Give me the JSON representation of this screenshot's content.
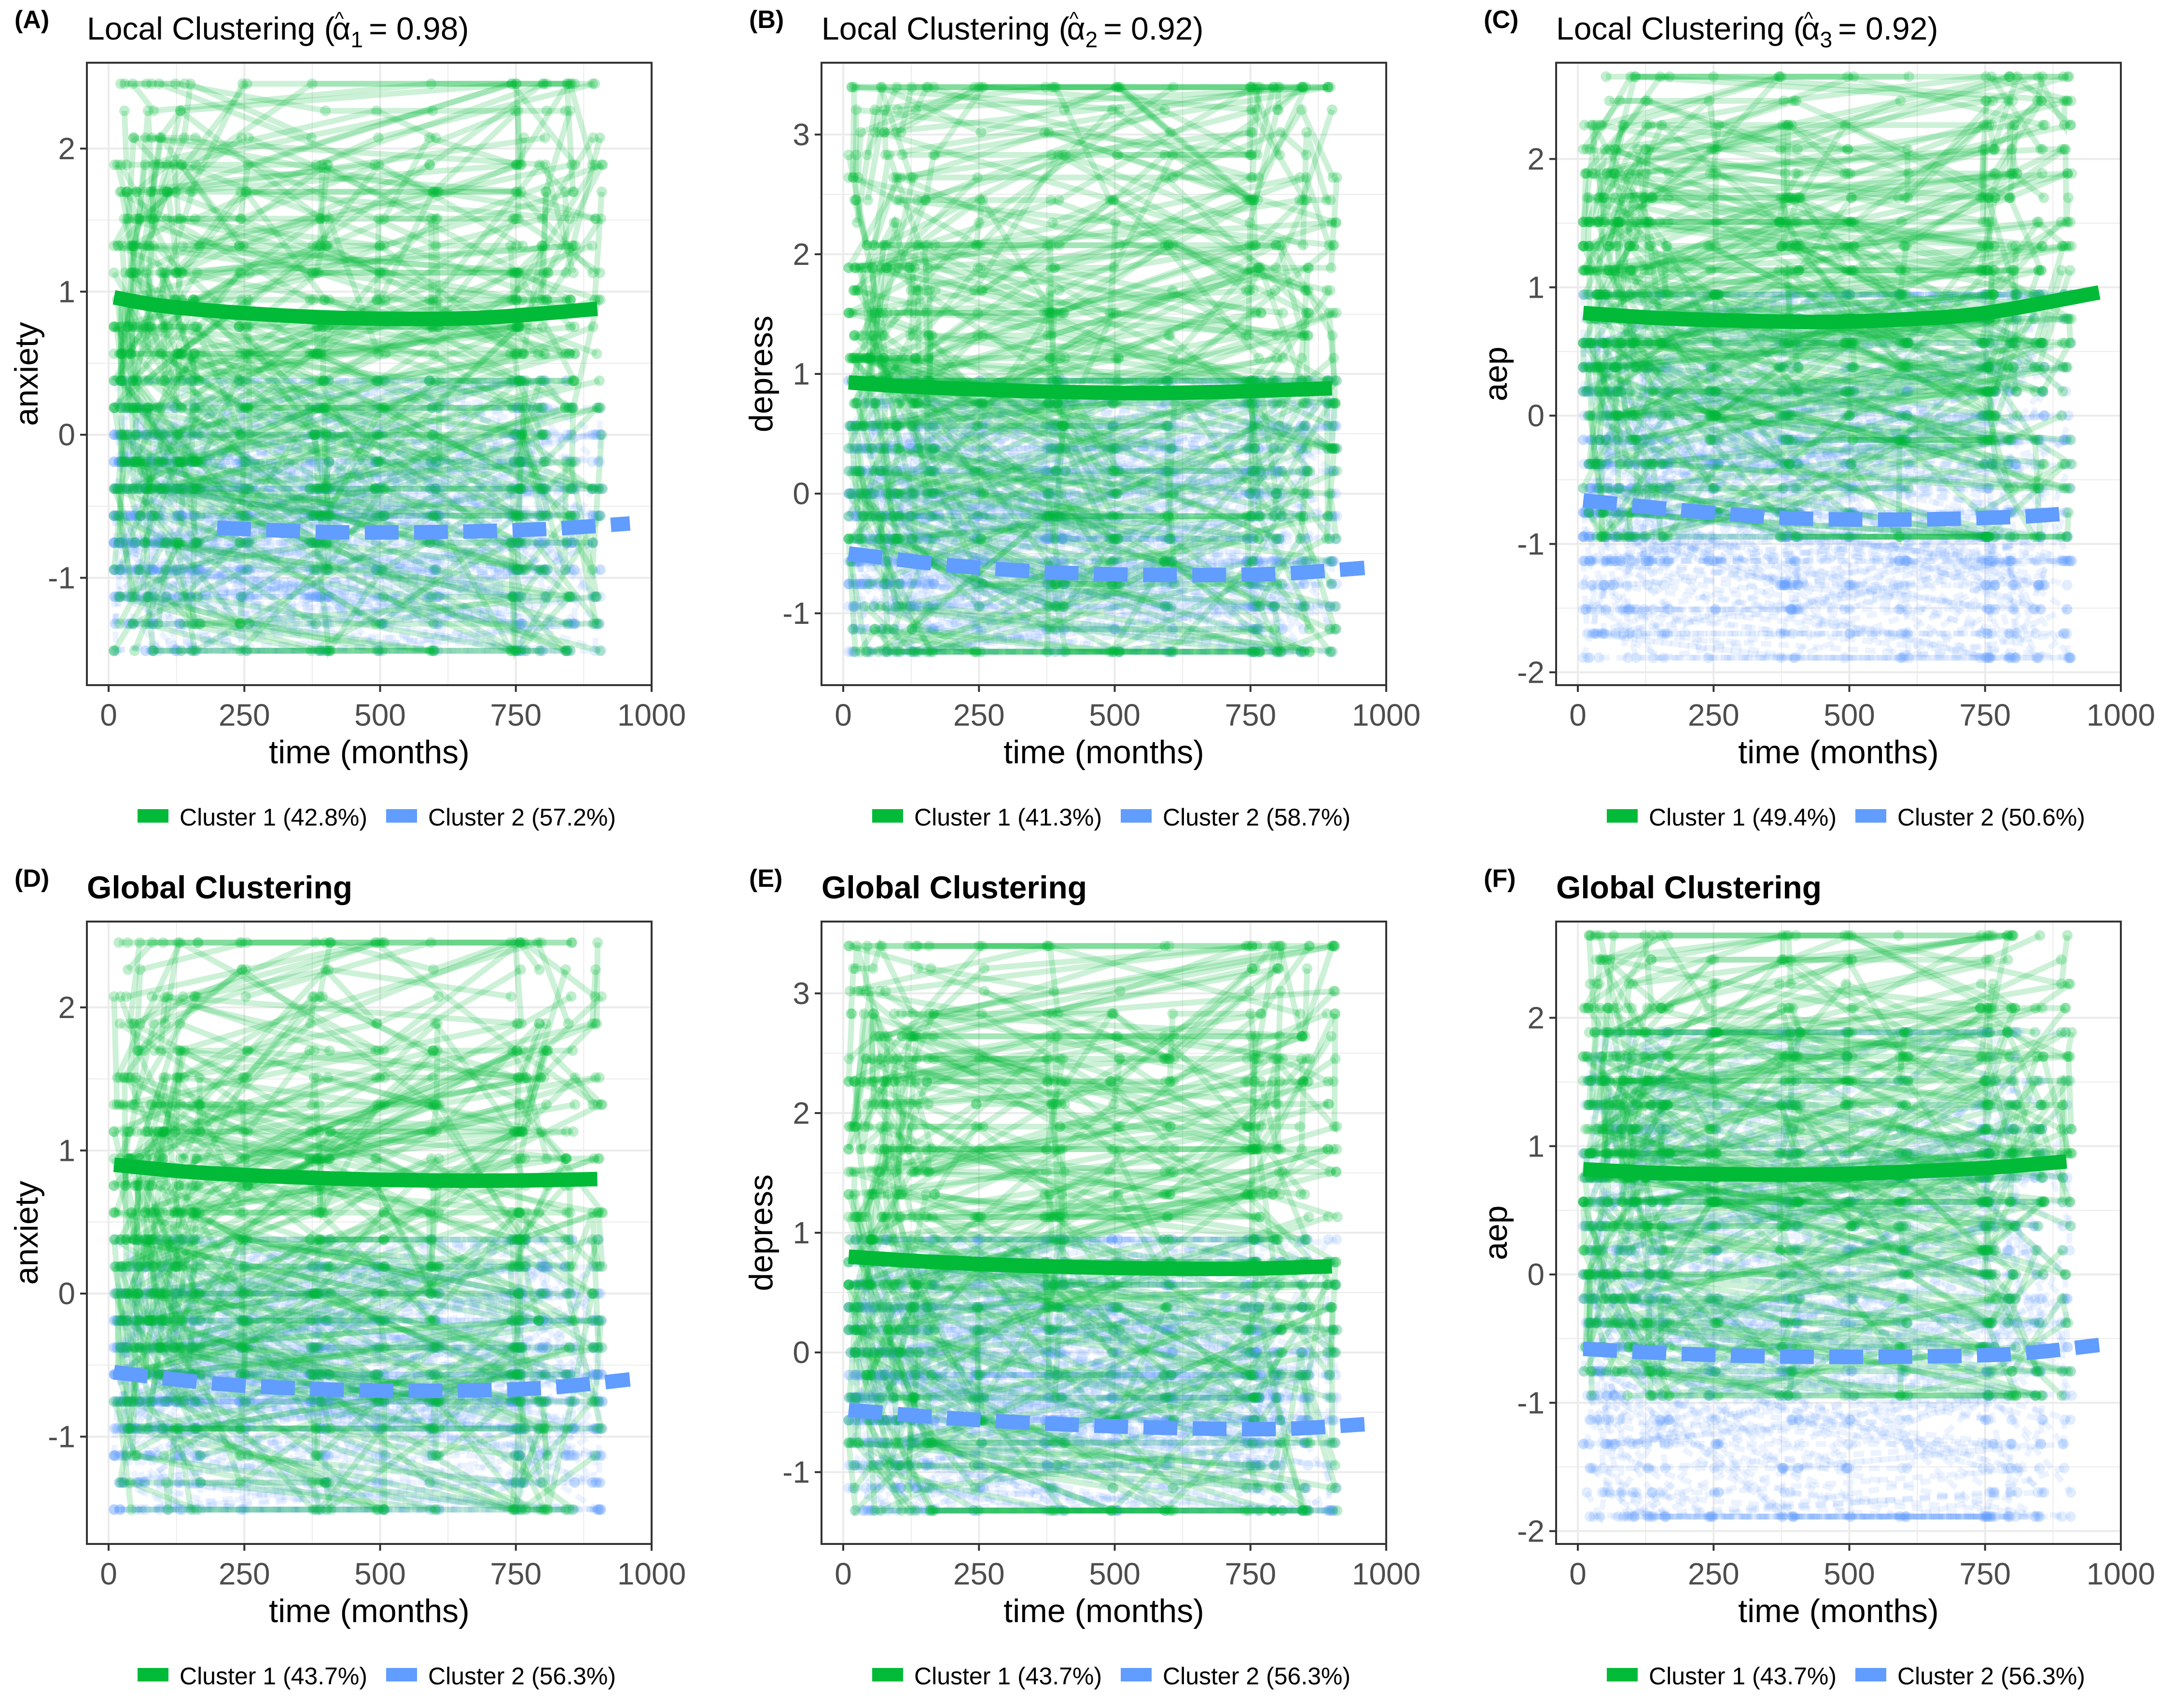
{
  "figure": {
    "colors": {
      "cluster1": "#00BA38",
      "cluster2": "#619CFF",
      "panel_border": "#333333",
      "grid": "#EBEBEB",
      "tick_text": "#4D4D4D"
    }
  },
  "chart_data": [
    {
      "type": "line",
      "tag": "(A)",
      "title": "Local Clustering",
      "title_formula": {
        "alpha": "α",
        "hat": "^",
        "subscript": "1",
        "value": "= 0.98"
      },
      "title_bold": false,
      "xlabel": "time (months)",
      "ylabel": "anxiety",
      "xlim": [
        -40,
        1000
      ],
      "ylim": [
        -1.75,
        2.6
      ],
      "xticks": [
        0,
        250,
        500,
        750,
        1000
      ],
      "xtick_labels": [
        "0",
        "250",
        "500",
        "750",
        "1000"
      ],
      "yticks": [
        -1,
        0,
        1,
        2
      ],
      "ytick_labels": [
        "-1",
        "0",
        "1",
        "2"
      ],
      "legend_position": "bottom",
      "legend": [
        "Cluster 1 (42.8%)",
        "Cluster 2 (57.2%)"
      ],
      "series": [
        {
          "name": "Cluster 1 mean trajectory",
          "style": "solid",
          "x": [
            10,
            100,
            250,
            400,
            550,
            700,
            900
          ],
          "y": [
            0.96,
            0.9,
            0.85,
            0.82,
            0.81,
            0.82,
            0.88
          ]
        },
        {
          "name": "Cluster 2 mean trajectory",
          "style": "dashed",
          "x": [
            200,
            400,
            600,
            800,
            960
          ],
          "y": [
            -0.65,
            -0.68,
            -0.68,
            -0.66,
            -0.62
          ]
        }
      ],
      "individual_trajectories": {
        "cluster1_y_range": [
          -1.5,
          2.45
        ],
        "cluster2_y_range": [
          -1.55,
          0.35
        ],
        "x_range": [
          10,
          960
        ]
      }
    },
    {
      "type": "line",
      "tag": "(B)",
      "title": "Local Clustering",
      "title_formula": {
        "alpha": "α",
        "hat": "^",
        "subscript": "2",
        "value": "= 0.92"
      },
      "title_bold": false,
      "xlabel": "time (months)",
      "ylabel": "depress",
      "xlim": [
        -40,
        1000
      ],
      "ylim": [
        -1.6,
        3.6
      ],
      "xticks": [
        0,
        250,
        500,
        750,
        1000
      ],
      "xtick_labels": [
        "0",
        "250",
        "500",
        "750",
        "1000"
      ],
      "yticks": [
        -1,
        0,
        1,
        2,
        3
      ],
      "ytick_labels": [
        "-1",
        "0",
        "1",
        "2",
        "3"
      ],
      "legend_position": "bottom",
      "legend": [
        "Cluster 1 (41.3%)",
        "Cluster 2 (58.7%)"
      ],
      "series": [
        {
          "name": "Cluster 1 mean trajectory",
          "style": "solid",
          "x": [
            10,
            100,
            250,
            400,
            550,
            700,
            900
          ],
          "y": [
            0.93,
            0.9,
            0.87,
            0.85,
            0.84,
            0.85,
            0.88
          ]
        },
        {
          "name": "Cluster 2 mean trajectory",
          "style": "dashed",
          "x": [
            10,
            200,
            400,
            600,
            800,
            960
          ],
          "y": [
            -0.5,
            -0.6,
            -0.66,
            -0.68,
            -0.67,
            -0.62
          ]
        }
      ],
      "individual_trajectories": {
        "cluster1_y_range": [
          -1.3,
          3.45
        ],
        "cluster2_y_range": [
          -1.4,
          1.0
        ],
        "x_range": [
          10,
          960
        ]
      }
    },
    {
      "type": "line",
      "tag": "(C)",
      "title": "Local Clustering",
      "title_formula": {
        "alpha": "α",
        "hat": "^",
        "subscript": "3",
        "value": "= 0.92"
      },
      "title_bold": false,
      "xlabel": "time (months)",
      "ylabel": "aep",
      "xlim": [
        -40,
        1000
      ],
      "ylim": [
        -2.1,
        2.75
      ],
      "xticks": [
        0,
        250,
        500,
        750,
        1000
      ],
      "xtick_labels": [
        "0",
        "250",
        "500",
        "750",
        "1000"
      ],
      "yticks": [
        -2,
        -1,
        0,
        1,
        2
      ],
      "ytick_labels": [
        "-2",
        "-1",
        "0",
        "1",
        "2"
      ],
      "legend_position": "bottom",
      "legend": [
        "Cluster 1 (49.4%)",
        "Cluster 2 (50.6%)"
      ],
      "series": [
        {
          "name": "Cluster 1 mean trajectory",
          "style": "solid",
          "x": [
            10,
            150,
            300,
            450,
            600,
            750,
            960
          ],
          "y": [
            0.8,
            0.76,
            0.74,
            0.73,
            0.75,
            0.8,
            0.96
          ]
        },
        {
          "name": "Cluster 2 mean trajectory",
          "style": "dashed",
          "x": [
            10,
            200,
            400,
            600,
            800,
            910
          ],
          "y": [
            -0.66,
            -0.74,
            -0.8,
            -0.81,
            -0.79,
            -0.76
          ]
        }
      ],
      "individual_trajectories": {
        "cluster1_y_range": [
          -0.9,
          2.6
        ],
        "cluster2_y_range": [
          -1.9,
          1.0
        ],
        "x_range": [
          10,
          960
        ]
      }
    },
    {
      "type": "line",
      "tag": "(D)",
      "title": "Global Clustering",
      "title_bold": true,
      "xlabel": "time (months)",
      "ylabel": "anxiety",
      "xlim": [
        -40,
        1000
      ],
      "ylim": [
        -1.75,
        2.6
      ],
      "xticks": [
        0,
        250,
        500,
        750,
        1000
      ],
      "xtick_labels": [
        "0",
        "250",
        "500",
        "750",
        "1000"
      ],
      "yticks": [
        -1,
        0,
        1,
        2
      ],
      "ytick_labels": [
        "-1",
        "0",
        "1",
        "2"
      ],
      "legend_position": "bottom",
      "legend": [
        "Cluster 1 (43.7%)",
        "Cluster 2 (56.3%)"
      ],
      "series": [
        {
          "name": "Cluster 1 mean trajectory",
          "style": "solid",
          "x": [
            10,
            150,
            300,
            450,
            600,
            750,
            900
          ],
          "y": [
            0.9,
            0.85,
            0.82,
            0.8,
            0.79,
            0.79,
            0.8
          ]
        },
        {
          "name": "Cluster 2 mean trajectory",
          "style": "dashed",
          "x": [
            10,
            200,
            400,
            600,
            800,
            960
          ],
          "y": [
            -0.55,
            -0.63,
            -0.67,
            -0.68,
            -0.66,
            -0.6
          ]
        }
      ],
      "individual_trajectories": {
        "cluster1_y_range": [
          -1.5,
          2.45
        ],
        "cluster2_y_range": [
          -1.55,
          0.35
        ],
        "x_range": [
          10,
          960
        ]
      }
    },
    {
      "type": "line",
      "tag": "(E)",
      "title": "Global Clustering",
      "title_bold": true,
      "xlabel": "time (months)",
      "ylabel": "depress",
      "xlim": [
        -40,
        1000
      ],
      "ylim": [
        -1.6,
        3.6
      ],
      "xticks": [
        0,
        250,
        500,
        750,
        1000
      ],
      "xtick_labels": [
        "0",
        "250",
        "500",
        "750",
        "1000"
      ],
      "yticks": [
        -1,
        0,
        1,
        2,
        3
      ],
      "ytick_labels": [
        "-1",
        "0",
        "1",
        "2",
        "3"
      ],
      "legend_position": "bottom",
      "legend": [
        "Cluster 1 (43.7%)",
        "Cluster 2 (56.3%)"
      ],
      "series": [
        {
          "name": "Cluster 1 mean trajectory",
          "style": "solid",
          "x": [
            10,
            150,
            300,
            450,
            600,
            750,
            900
          ],
          "y": [
            0.8,
            0.76,
            0.73,
            0.71,
            0.7,
            0.7,
            0.72
          ]
        },
        {
          "name": "Cluster 2 mean trajectory",
          "style": "dashed",
          "x": [
            10,
            200,
            400,
            600,
            800,
            960
          ],
          "y": [
            -0.48,
            -0.55,
            -0.6,
            -0.63,
            -0.64,
            -0.6
          ]
        }
      ],
      "individual_trajectories": {
        "cluster1_y_range": [
          -1.3,
          3.45
        ],
        "cluster2_y_range": [
          -1.4,
          1.0
        ],
        "x_range": [
          10,
          960
        ]
      }
    },
    {
      "type": "line",
      "tag": "(F)",
      "title": "Global Clustering",
      "title_bold": true,
      "xlabel": "time (months)",
      "ylabel": "aep",
      "xlim": [
        -40,
        1000
      ],
      "ylim": [
        -2.1,
        2.75
      ],
      "xticks": [
        0,
        250,
        500,
        750,
        1000
      ],
      "xtick_labels": [
        "0",
        "250",
        "500",
        "750",
        "1000"
      ],
      "yticks": [
        -2,
        -1,
        0,
        1,
        2
      ],
      "ytick_labels": [
        "-2",
        "-1",
        "0",
        "1",
        "2"
      ],
      "legend_position": "bottom",
      "legend": [
        "Cluster 1 (43.7%)",
        "Cluster 2 (56.3%)"
      ],
      "series": [
        {
          "name": "Cluster 1 mean trajectory",
          "style": "solid",
          "x": [
            10,
            150,
            300,
            450,
            600,
            750,
            900
          ],
          "y": [
            0.82,
            0.79,
            0.78,
            0.78,
            0.8,
            0.83,
            0.88
          ]
        },
        {
          "name": "Cluster 2 mean trajectory",
          "style": "dashed",
          "x": [
            10,
            200,
            400,
            600,
            800,
            960
          ],
          "y": [
            -0.58,
            -0.62,
            -0.64,
            -0.64,
            -0.62,
            -0.55
          ]
        }
      ],
      "individual_trajectories": {
        "cluster1_y_range": [
          -0.9,
          2.6
        ],
        "cluster2_y_range": [
          -1.9,
          1.85
        ],
        "x_range": [
          10,
          960
        ]
      }
    }
  ]
}
